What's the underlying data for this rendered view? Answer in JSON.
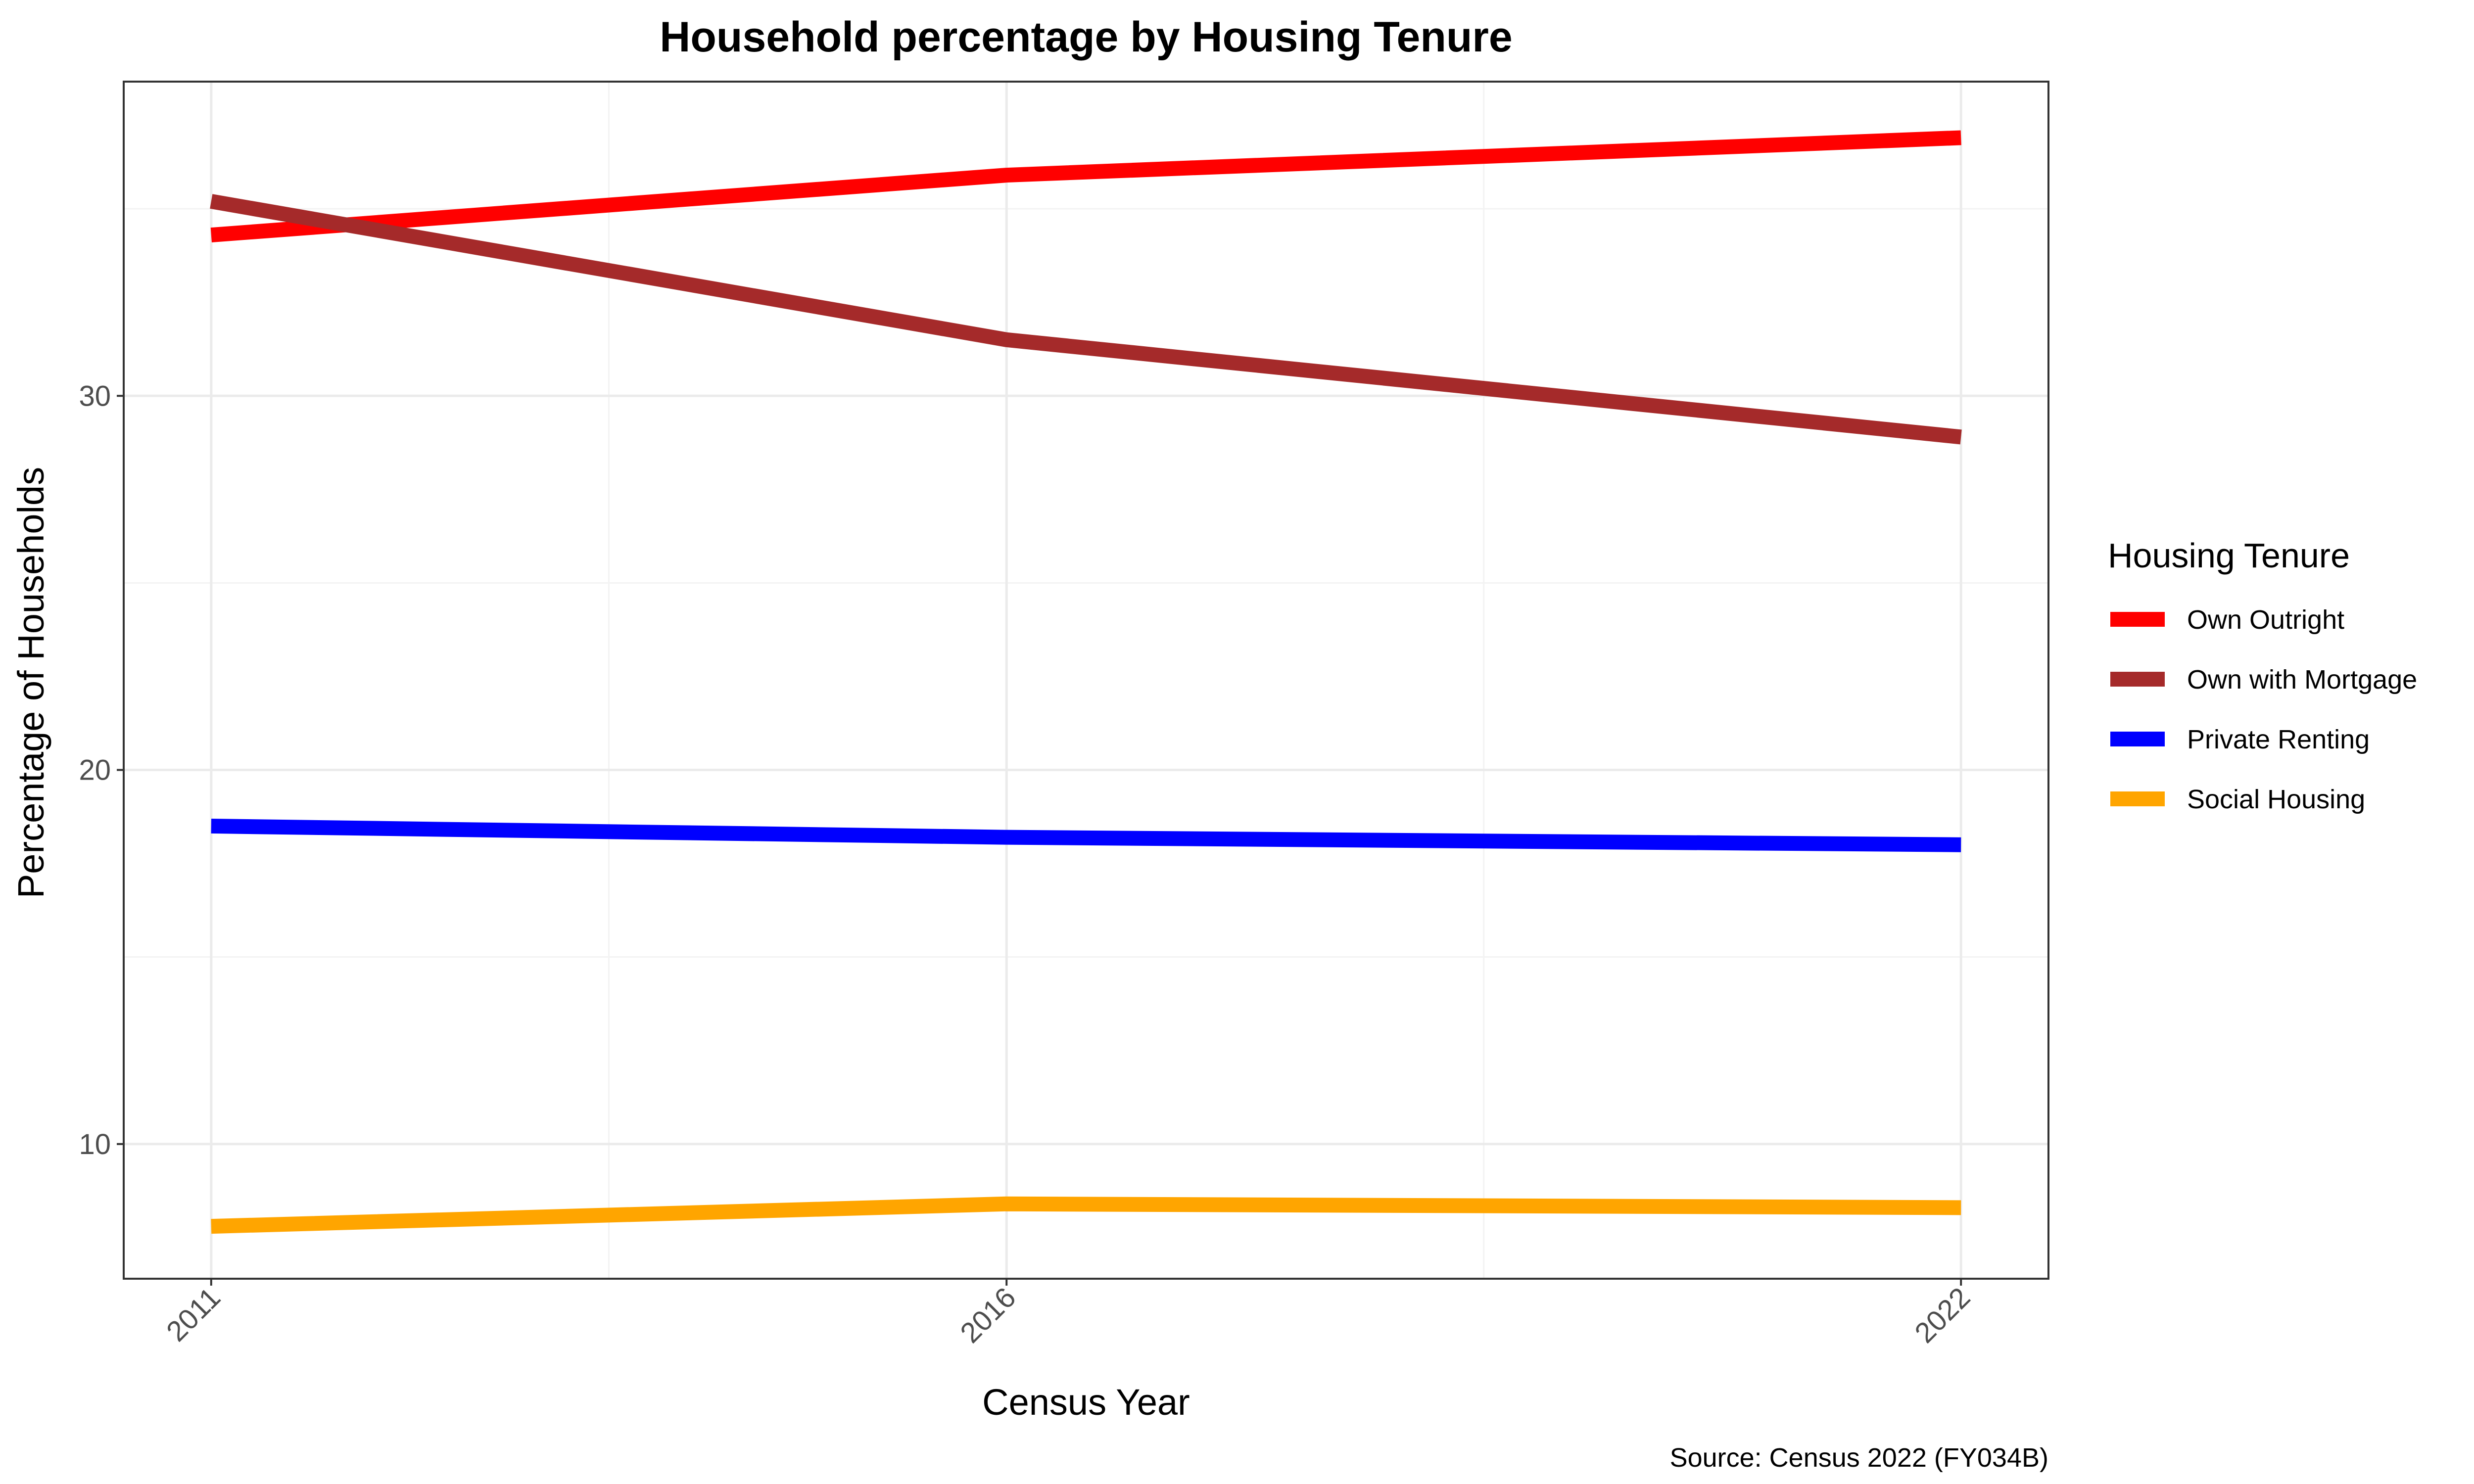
{
  "chart_data": {
    "type": "line",
    "title": "Household percentage by Housing Tenure",
    "xlabel": "Census Year",
    "ylabel": "Percentage of Households",
    "caption": "Source: Census 2022 (FY034B)",
    "x": [
      2011,
      2016,
      2022
    ],
    "x_tick_labels": [
      "2011",
      "2016",
      "2022"
    ],
    "y_ticks": [
      10,
      20,
      30
    ],
    "y_tick_labels": [
      "10",
      "20",
      "30"
    ],
    "xlim": [
      2010.45,
      2022.55
    ],
    "ylim": [
      6.4,
      38.4
    ],
    "grid": true,
    "legend": {
      "title": "Housing Tenure",
      "position": "right"
    },
    "series": [
      {
        "name": "Own Outright",
        "color": "#ff0000",
        "values": [
          34.3,
          35.9,
          36.9
        ]
      },
      {
        "name": "Own with Mortgage",
        "color": "#a52a2a",
        "values": [
          35.2,
          31.5,
          28.9
        ]
      },
      {
        "name": "Private Renting",
        "color": "#0000ff",
        "values": [
          18.5,
          18.2,
          18.0
        ]
      },
      {
        "name": "Social Housing",
        "color": "#ffa500",
        "values": [
          7.8,
          8.4,
          8.3
        ]
      }
    ]
  }
}
